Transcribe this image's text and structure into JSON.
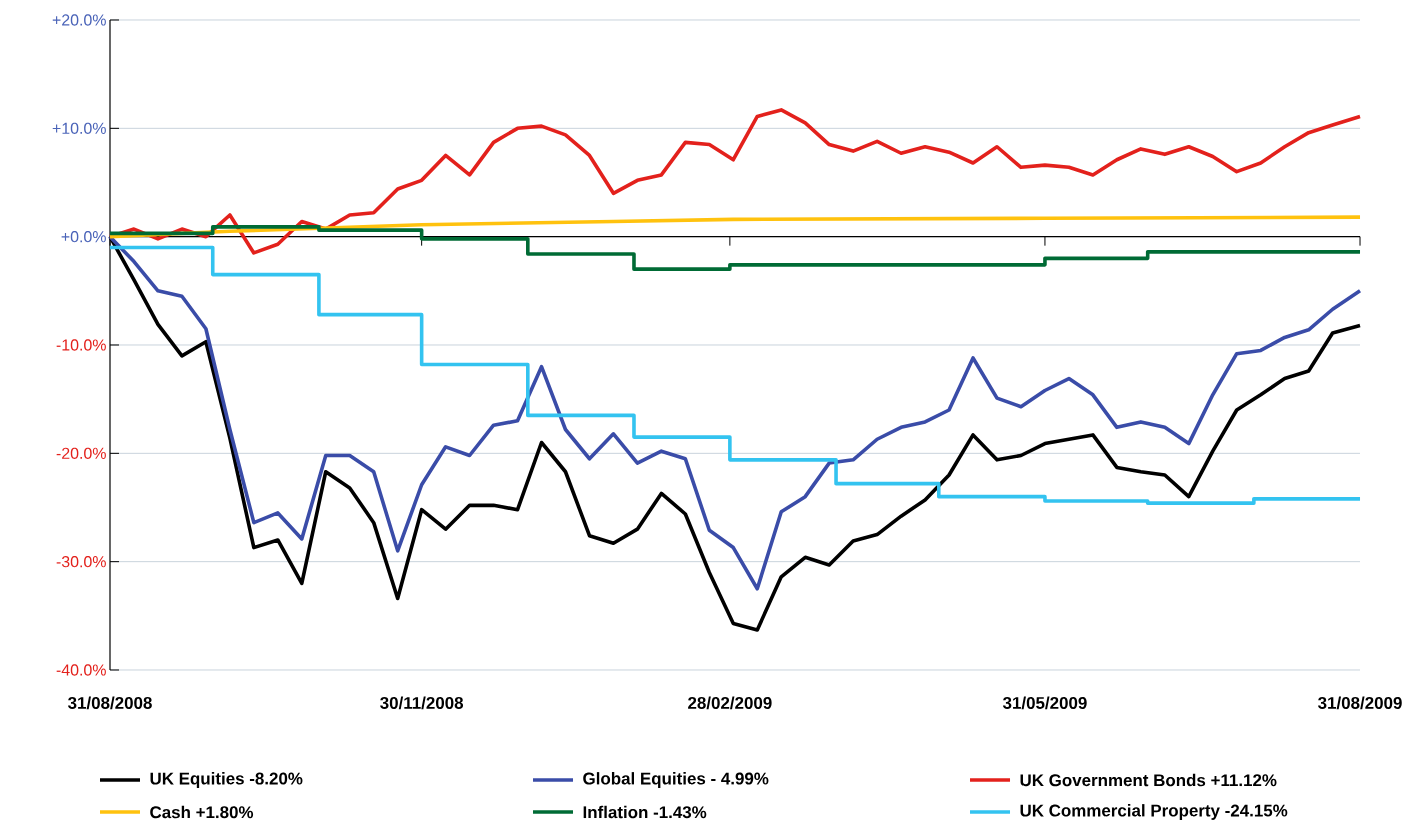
{
  "chart_data": {
    "type": "line",
    "x": [
      "2008-08-31",
      "2008-09-07",
      "2008-09-14",
      "2008-09-21",
      "2008-09-28",
      "2008-10-05",
      "2008-10-12",
      "2008-10-19",
      "2008-10-26",
      "2008-11-02",
      "2008-11-09",
      "2008-11-16",
      "2008-11-23",
      "2008-11-30",
      "2008-12-07",
      "2008-12-14",
      "2008-12-21",
      "2008-12-28",
      "2009-01-04",
      "2009-01-11",
      "2009-01-18",
      "2009-01-25",
      "2009-02-01",
      "2009-02-08",
      "2009-02-15",
      "2009-02-22",
      "2009-03-01",
      "2009-03-08",
      "2009-03-15",
      "2009-03-22",
      "2009-03-29",
      "2009-04-05",
      "2009-04-12",
      "2009-04-19",
      "2009-04-26",
      "2009-05-03",
      "2009-05-10",
      "2009-05-17",
      "2009-05-24",
      "2009-05-31",
      "2009-06-07",
      "2009-06-14",
      "2009-06-21",
      "2009-06-28",
      "2009-07-05",
      "2009-07-12",
      "2009-07-19",
      "2009-07-26",
      "2009-08-02",
      "2009-08-09",
      "2009-08-16",
      "2009-08-23",
      "2009-08-31"
    ],
    "series": [
      {
        "name": "UK Equities -8.20%",
        "color": "#000000",
        "values": [
          0,
          -4,
          -8.1,
          -11,
          -9.7,
          -18.6,
          -28.7,
          -28,
          -32,
          -21.7,
          -23.2,
          -26.4,
          -33.4,
          -25.2,
          -27,
          -24.8,
          -24.8,
          -25.2,
          -19,
          -21.7,
          -27.6,
          -28.3,
          -27,
          -23.7,
          -25.6,
          -31,
          -35.7,
          -36.3,
          -31.4,
          -29.6,
          -30.3,
          -28.1,
          -27.5,
          -25.8,
          -24.3,
          -22,
          -18.3,
          -20.6,
          -20.2,
          -19.1,
          -18.7,
          -18.3,
          -21.3,
          -21.7,
          -22,
          -24,
          -19.8,
          -16,
          -14.6,
          -13.1,
          -12.4,
          -8.9,
          -8.2
        ]
      },
      {
        "name": "Global Equities - 4.99%",
        "color": "#3a4ca8",
        "values": [
          0,
          -2.3,
          -5,
          -5.5,
          -8.5,
          -17.8,
          -26.4,
          -25.5,
          -27.9,
          -20.2,
          -20.2,
          -21.7,
          -29,
          -22.9,
          -19.4,
          -20.2,
          -17.4,
          -17,
          -12,
          -17.8,
          -20.5,
          -18.2,
          -20.9,
          -19.8,
          -20.5,
          -27.1,
          -28.7,
          -32.5,
          -25.4,
          -24,
          -20.9,
          -20.6,
          -18.7,
          -17.6,
          -17.1,
          -16,
          -11.2,
          -14.9,
          -15.7,
          -14.2,
          -13.1,
          -14.6,
          -17.6,
          -17.1,
          -17.6,
          -19.1,
          -14.6,
          -10.8,
          -10.5,
          -9.3,
          -8.6,
          -6.7,
          -5.0
        ]
      },
      {
        "name": "UK Government Bonds +11.12%",
        "color": "#e3211c",
        "values": [
          0,
          0.7,
          -0.2,
          0.7,
          0,
          2.0,
          -1.5,
          -0.7,
          1.4,
          0.7,
          2,
          2.2,
          4.4,
          5.2,
          7.5,
          5.7,
          8.7,
          10,
          10.2,
          9.4,
          7.5,
          4,
          5.2,
          5.7,
          8.7,
          8.5,
          7.1,
          11.1,
          11.7,
          10.5,
          8.5,
          7.9,
          8.8,
          7.7,
          8.3,
          7.8,
          6.8,
          8.3,
          6.4,
          6.6,
          6.4,
          5.7,
          7.1,
          8.1,
          7.6,
          8.3,
          7.4,
          6.0,
          6.8,
          8.3,
          9.6,
          10.3,
          11.1
        ]
      },
      {
        "name": "Cash +1.80%",
        "color": "#ffc20e",
        "x": [
          "2008-08-31",
          "2008-10-05",
          "2008-11-30",
          "2009-01-25",
          "2009-03-01",
          "2009-05-31",
          "2009-08-31"
        ],
        "values": [
          0,
          0.5,
          1.1,
          1.4,
          1.6,
          1.7,
          1.8
        ]
      },
      {
        "name": "Inflation -1.43%",
        "color": "#006b35",
        "type": "step",
        "x": [
          "2008-08-31",
          "2008-09-30",
          "2008-10-31",
          "2008-11-30",
          "2008-12-31",
          "2009-01-31",
          "2009-02-28",
          "2009-05-31",
          "2009-06-30",
          "2009-08-31"
        ],
        "values": [
          0.3,
          0.9,
          0.6,
          -0.2,
          -1.6,
          -3.0,
          -2.6,
          -2.0,
          -1.4,
          -1.4
        ]
      },
      {
        "name": "UK Commercial Property -24.15%",
        "color": "#33c3f0",
        "type": "step",
        "x": [
          "2008-08-31",
          "2008-09-30",
          "2008-10-31",
          "2008-11-30",
          "2008-12-31",
          "2009-01-31",
          "2009-02-28",
          "2009-03-31",
          "2009-04-30",
          "2009-05-31",
          "2009-06-30",
          "2009-07-31",
          "2009-08-31"
        ],
        "values": [
          -1.0,
          -3.5,
          -7.2,
          -11.8,
          -16.5,
          -18.5,
          -20.6,
          -22.8,
          -24.0,
          -24.4,
          -24.6,
          -24.2,
          -24.2
        ]
      }
    ],
    "xlim": [
      "2008-08-31",
      "2009-08-31"
    ],
    "xticks": [
      {
        "value": "2008-08-31",
        "label": "31/08/2008"
      },
      {
        "value": "2008-11-30",
        "label": "30/11/2008"
      },
      {
        "value": "2009-02-28",
        "label": "28/02/2009"
      },
      {
        "value": "2009-05-31",
        "label": "31/05/2009"
      },
      {
        "value": "2009-08-31",
        "label": "31/08/2009"
      }
    ],
    "ylim": [
      -40,
      20
    ],
    "yticks": [
      {
        "value": 20,
        "label": "+20.0%"
      },
      {
        "value": 10,
        "label": "+10.0%"
      },
      {
        "value": 0,
        "label": "+0.0%"
      },
      {
        "value": -10,
        "label": "-10.0%"
      },
      {
        "value": -20,
        "label": "-20.0%"
      },
      {
        "value": -30,
        "label": "-30.0%"
      },
      {
        "value": -40,
        "label": "-40.0%"
      }
    ],
    "grid": "y",
    "legend": "bottom"
  }
}
